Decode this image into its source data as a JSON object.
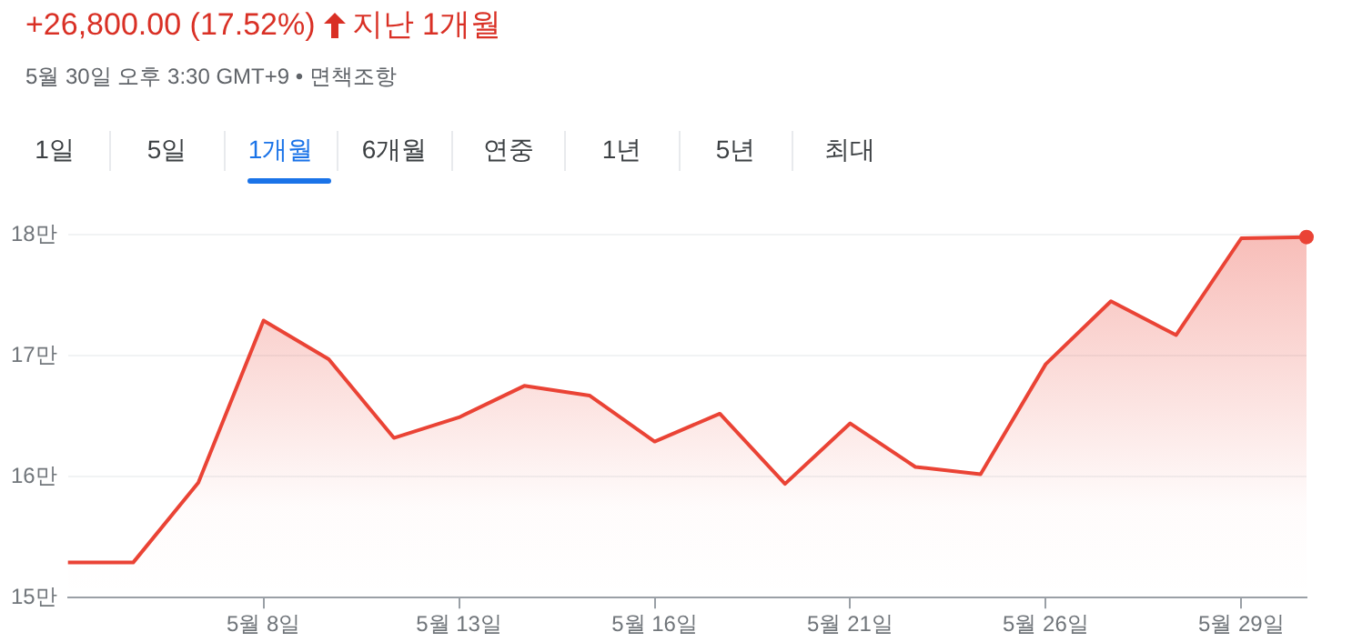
{
  "chart_data": {
    "type": "area",
    "title": "+26,800.00 (17.52%)",
    "subtitle": "5월 30일 오후 3:30 GMT+9 • 면책조항",
    "annotations": [
      "지난 1개월",
      "1일",
      "5일",
      "1개월",
      "6개월",
      "연중",
      "1년",
      "5년",
      "최대"
    ],
    "categories": [
      null,
      null,
      null,
      "5월 8일",
      null,
      null,
      "5월 13일",
      null,
      null,
      "5월 16일",
      null,
      null,
      "5월 21일",
      null,
      null,
      "5월 26일",
      null,
      null,
      "5월 29일",
      null
    ],
    "series": [
      {
        "color": "#ea4335",
        "values": [
          15.29,
          15.29,
          15.95,
          17.29,
          16.97,
          16.32,
          16.49,
          16.75,
          16.67,
          16.29,
          16.52,
          15.94,
          16.44,
          16.08,
          16.02,
          16.93,
          17.45,
          17.17,
          17.97,
          17.98
        ]
      }
    ],
    "ylim": [
      15,
      18
    ],
    "yticks": [
      {
        "value": 15,
        "label": "15만"
      },
      {
        "value": 16,
        "label": "16만"
      },
      {
        "value": 17,
        "label": "17만"
      },
      {
        "value": 18,
        "label": "18만"
      }
    ],
    "grid": "y",
    "legend": false
  }
}
